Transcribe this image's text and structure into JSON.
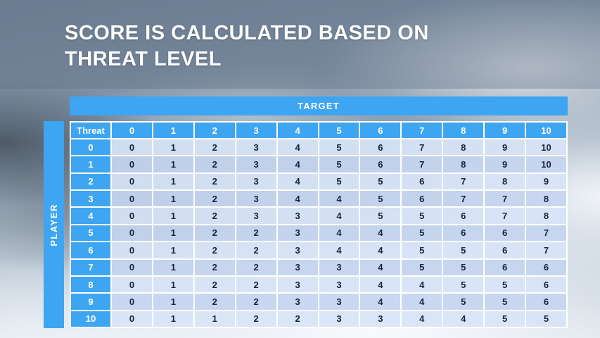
{
  "slide": {
    "title_line1": "SCORE IS CALCULATED BASED ON",
    "title_line2": "THREAT LEVEL"
  },
  "table": {
    "target_label": "TARGET",
    "player_label": "PLAYER",
    "corner_label": "Threat",
    "column_headers": [
      "0",
      "1",
      "2",
      "3",
      "4",
      "5",
      "6",
      "7",
      "8",
      "9",
      "10"
    ],
    "rows": [
      {
        "threat": "0",
        "values": [
          "0",
          "1",
          "2",
          "3",
          "4",
          "5",
          "6",
          "7",
          "8",
          "9",
          "10"
        ]
      },
      {
        "threat": "1",
        "values": [
          "0",
          "1",
          "2",
          "3",
          "4",
          "5",
          "6",
          "7",
          "8",
          "9",
          "10"
        ]
      },
      {
        "threat": "2",
        "values": [
          "0",
          "1",
          "2",
          "3",
          "4",
          "5",
          "5",
          "6",
          "7",
          "8",
          "9"
        ]
      },
      {
        "threat": "3",
        "values": [
          "0",
          "1",
          "2",
          "3",
          "4",
          "4",
          "5",
          "6",
          "7",
          "7",
          "8"
        ]
      },
      {
        "threat": "4",
        "values": [
          "0",
          "1",
          "2",
          "3",
          "3",
          "4",
          "5",
          "5",
          "6",
          "7",
          "8"
        ]
      },
      {
        "threat": "5",
        "values": [
          "0",
          "1",
          "2",
          "2",
          "3",
          "4",
          "4",
          "5",
          "6",
          "6",
          "7"
        ]
      },
      {
        "threat": "6",
        "values": [
          "0",
          "1",
          "2",
          "2",
          "3",
          "4",
          "4",
          "5",
          "5",
          "6",
          "7"
        ]
      },
      {
        "threat": "7",
        "values": [
          "0",
          "1",
          "2",
          "2",
          "3",
          "3",
          "4",
          "5",
          "5",
          "6",
          "6"
        ]
      },
      {
        "threat": "8",
        "values": [
          "0",
          "1",
          "2",
          "2",
          "3",
          "3",
          "4",
          "4",
          "5",
          "5",
          "6"
        ]
      },
      {
        "threat": "9",
        "values": [
          "0",
          "1",
          "2",
          "2",
          "3",
          "3",
          "4",
          "4",
          "5",
          "5",
          "6"
        ]
      },
      {
        "threat": "10",
        "values": [
          "0",
          "1",
          "1",
          "2",
          "2",
          "3",
          "3",
          "4",
          "4",
          "5",
          "5"
        ]
      }
    ]
  },
  "chart_data": {
    "type": "table",
    "title": "Score by player threat level vs target threat level",
    "column_axis_label": "TARGET",
    "row_axis_label": "PLAYER",
    "corner_label": "Threat",
    "columns": [
      0,
      1,
      2,
      3,
      4,
      5,
      6,
      7,
      8,
      9,
      10
    ],
    "row_labels": [
      0,
      1,
      2,
      3,
      4,
      5,
      6,
      7,
      8,
      9,
      10
    ],
    "matrix": [
      [
        0,
        1,
        2,
        3,
        4,
        5,
        6,
        7,
        8,
        9,
        10
      ],
      [
        0,
        1,
        2,
        3,
        4,
        5,
        6,
        7,
        8,
        9,
        10
      ],
      [
        0,
        1,
        2,
        3,
        4,
        5,
        5,
        6,
        7,
        8,
        9
      ],
      [
        0,
        1,
        2,
        3,
        4,
        4,
        5,
        6,
        7,
        7,
        8
      ],
      [
        0,
        1,
        2,
        3,
        3,
        4,
        5,
        5,
        6,
        7,
        8
      ],
      [
        0,
        1,
        2,
        2,
        3,
        4,
        4,
        5,
        6,
        6,
        7
      ],
      [
        0,
        1,
        2,
        2,
        3,
        4,
        4,
        5,
        5,
        6,
        7
      ],
      [
        0,
        1,
        2,
        2,
        3,
        3,
        4,
        5,
        5,
        6,
        6
      ],
      [
        0,
        1,
        2,
        2,
        3,
        3,
        4,
        4,
        5,
        5,
        6
      ],
      [
        0,
        1,
        2,
        2,
        3,
        3,
        4,
        4,
        5,
        5,
        6
      ],
      [
        0,
        1,
        1,
        2,
        2,
        3,
        3,
        4,
        4,
        5,
        5
      ]
    ]
  },
  "colors": {
    "header_blue": "#3EA5F2",
    "row_light": "#D8E4F6",
    "row_dark": "#C5D5EF",
    "cell_text": "#16243D",
    "title_text": "#FDFDFD"
  }
}
